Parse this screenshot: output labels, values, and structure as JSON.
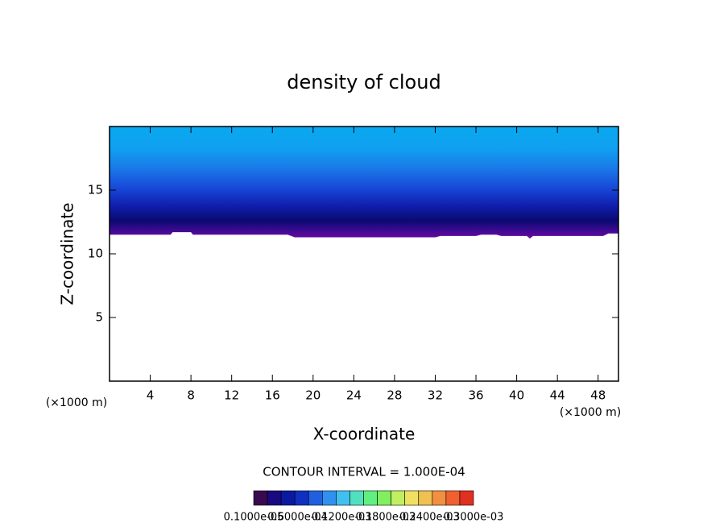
{
  "chart_data": {
    "type": "contour",
    "title": "density of cloud",
    "x_label": "X-coordinate",
    "y_label": "Z-coordinate",
    "x_unit": "(×1000 m)",
    "y_unit": "(×1000 m)",
    "xlim": [
      0,
      50
    ],
    "ylim": [
      0,
      20
    ],
    "xticks": [
      4,
      8,
      12,
      16,
      20,
      24,
      28,
      32,
      36,
      40,
      44,
      48
    ],
    "yticks": [
      5,
      10,
      15
    ],
    "cloud_base": {
      "x": [
        0,
        6,
        6.2,
        8,
        8.2,
        17.5,
        18.2,
        32,
        32.5,
        36,
        36.5,
        38,
        38.5,
        41,
        41.3,
        41.6,
        48.5,
        49,
        50
      ],
      "z": [
        11.5,
        11.5,
        11.7,
        11.7,
        11.5,
        11.5,
        11.3,
        11.3,
        11.4,
        11.4,
        11.5,
        11.5,
        11.4,
        11.4,
        11.2,
        11.4,
        11.4,
        11.6,
        11.6
      ]
    },
    "contour_interval": "CONTOUR INTERVAL = 1.000E-04",
    "colorbar_labels": [
      "0.1000e-05",
      "0.6000e-04",
      "0.1200e-03",
      "0.1800e-03",
      "0.2400e-03",
      "0.3000e-03"
    ],
    "colorbar_colors": [
      "#3a0a50",
      "#1a0a80",
      "#0a1aa0",
      "#1030c0",
      "#2060e0",
      "#3090f0",
      "#40c0f0",
      "#50e0c0",
      "#60f080",
      "#80f060",
      "#c0f060",
      "#f0e060",
      "#f0c050",
      "#f09040",
      "#f06030",
      "#e03020"
    ]
  }
}
